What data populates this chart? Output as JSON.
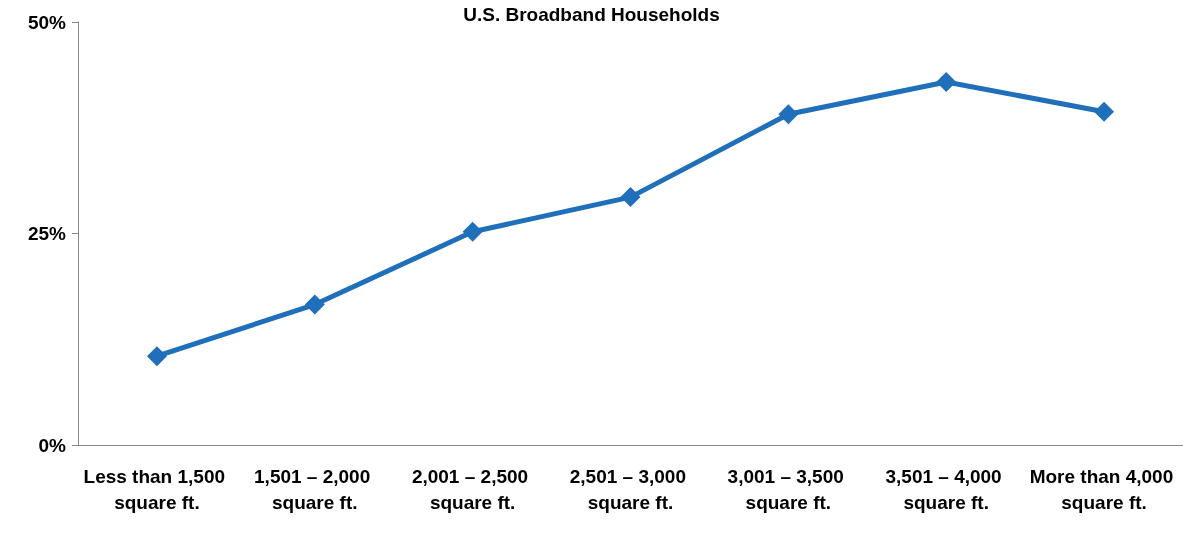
{
  "chart_data": {
    "type": "line",
    "title": "U.S. Broadband Households",
    "categories": [
      "Less than 1,500 square ft.",
      "1,501 – 2,000 square ft.",
      "2,001 – 2,500 square ft.",
      "2,501 – 3,000 square ft.",
      "3,001 – 3,500 square ft.",
      "3,501 – 4,000 square ft.",
      "More than 4,000 square ft."
    ],
    "series": [
      {
        "color": "#1f6fba",
        "values": [
          10.5,
          16.6,
          25.2,
          29.3,
          39.1,
          42.9,
          39.4
        ]
      }
    ],
    "ylim": [
      0,
      50
    ],
    "yticks": [
      {
        "value": 0,
        "label": "0%"
      },
      {
        "value": 25,
        "label": "25%"
      },
      {
        "value": 50,
        "label": "50%"
      }
    ],
    "marker": "diamond",
    "line_style": "solid"
  }
}
